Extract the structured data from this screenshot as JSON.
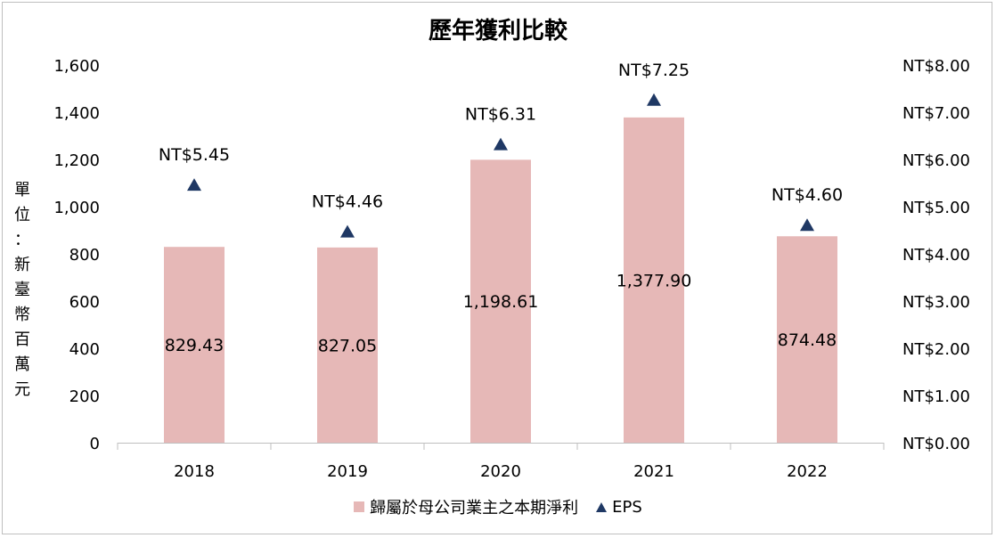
{
  "chart_data": {
    "type": "bar",
    "title": "歷年獲利比較",
    "ylabel": "單位：新臺幣百萬元",
    "categories": [
      "2018",
      "2019",
      "2020",
      "2021",
      "2022"
    ],
    "series": [
      {
        "name": "歸屬於母公司業主之本期淨利",
        "type": "bar",
        "axis": "left",
        "values": [
          829.43,
          827.05,
          1198.61,
          1377.9,
          874.48
        ],
        "labels": [
          "829.43",
          "827.05",
          "1,198.61",
          "1,377.90",
          "874.48"
        ],
        "color": "#e6b8b7"
      },
      {
        "name": "EPS",
        "type": "scatter",
        "marker": "triangle",
        "axis": "right",
        "values": [
          5.45,
          4.46,
          6.31,
          7.25,
          4.6
        ],
        "labels": [
          "NT$5.45",
          "NT$4.46",
          "NT$6.31",
          "NT$7.25",
          "NT$4.60"
        ],
        "color": "#1f3864"
      }
    ],
    "y_left": {
      "range": [
        0,
        1600
      ],
      "ticks": [
        "0",
        "200",
        "400",
        "600",
        "800",
        "1,000",
        "1,200",
        "1,400",
        "1,600"
      ]
    },
    "y_right": {
      "range": [
        0,
        8
      ],
      "ticks": [
        "NT$0.00",
        "NT$1.00",
        "NT$2.00",
        "NT$3.00",
        "NT$4.00",
        "NT$5.00",
        "NT$6.00",
        "NT$7.00",
        "NT$8.00"
      ]
    },
    "grid": false,
    "legend_position": "bottom"
  }
}
